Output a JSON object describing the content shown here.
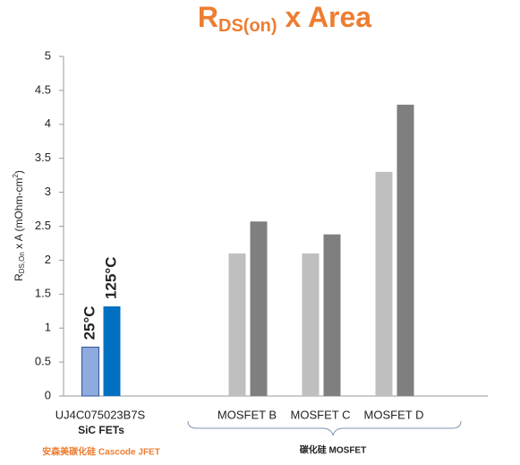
{
  "chart_data": {
    "type": "bar",
    "title": {
      "base": "R",
      "subscript": "DS(on)",
      "rest": " x Area"
    },
    "y_label": {
      "base": "R",
      "subscript": "DS,On",
      "rest": " x A (mOhm-cm",
      "superscript": "2",
      "end": ")"
    },
    "categories": [
      "UJ4C075023B7S",
      null,
      "MOSFET B",
      "MOSFET C",
      "MOSFET D"
    ],
    "series": [
      {
        "name": "25°C",
        "colors": [
          "#8faadc",
          null,
          "#bfbfbf",
          "#bfbfbf",
          "#bfbfbf"
        ],
        "values": [
          0.72,
          null,
          2.1,
          2.1,
          3.3
        ]
      },
      {
        "name": "125°C",
        "colors": [
          "#0070c0",
          null,
          "#7f7f7f",
          "#7f7f7f",
          "#7f7f7f"
        ],
        "values": [
          1.32,
          null,
          2.57,
          2.38,
          4.29
        ]
      }
    ],
    "ylim": [
      0,
      5
    ],
    "yticks": [
      0,
      0.5,
      1,
      1.5,
      2,
      2.5,
      3,
      3.5,
      4,
      4.5,
      5
    ],
    "grid": false,
    "annotations": {
      "sic_fets": "SiC FETs",
      "cascode": "安森美碳化硅 Cascode JFET",
      "mosfet_group": "碳化硅 MOSFET"
    }
  }
}
